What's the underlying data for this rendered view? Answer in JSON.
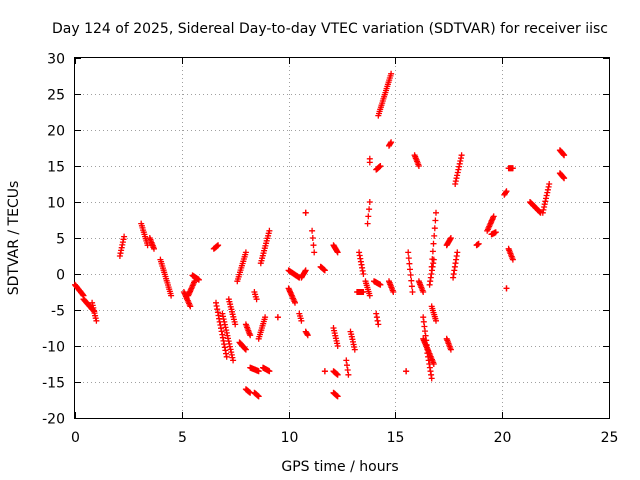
{
  "chart_data": {
    "type": "scatter",
    "title": "Day 124 of 2025, Sidereal Day-to-day VTEC variation (SDTVAR) for receiver iisc",
    "xlabel": "GPS time / hours",
    "ylabel": "SDTVAR / TECUs",
    "xlim": [
      0,
      25
    ],
    "ylim": [
      -20,
      30
    ],
    "xticks": [
      0,
      5,
      10,
      15,
      20,
      25
    ],
    "yticks": [
      -20,
      -15,
      -10,
      -5,
      0,
      5,
      10,
      15,
      20,
      25,
      30
    ],
    "grid": true,
    "marker": "+",
    "color": "#ff0000",
    "segments": [
      [
        0.0,
        -1.5,
        0.4,
        -3.0
      ],
      [
        0.4,
        -3.5,
        0.9,
        -5.2
      ],
      [
        0.8,
        -4.0,
        1.0,
        -6.5
      ],
      [
        2.1,
        2.5,
        2.3,
        5.2
      ],
      [
        3.1,
        7.0,
        3.4,
        4.0
      ],
      [
        3.5,
        5.0,
        3.7,
        3.5
      ],
      [
        4.0,
        2.0,
        4.5,
        -3.0
      ],
      [
        5.1,
        -2.5,
        5.4,
        -4.5
      ],
      [
        5.3,
        -3.0,
        5.6,
        -1.0
      ],
      [
        5.5,
        -0.2,
        5.8,
        -0.8
      ],
      [
        6.5,
        3.5,
        6.7,
        4.0
      ],
      [
        6.6,
        -4.0,
        7.1,
        -11.5
      ],
      [
        6.9,
        -5.5,
        7.4,
        -12.0
      ],
      [
        7.2,
        -3.5,
        7.5,
        -7.0
      ],
      [
        7.6,
        -1.0,
        8.0,
        3.0
      ],
      [
        7.7,
        -9.5,
        8.0,
        -10.5
      ],
      [
        8.0,
        -7.0,
        8.2,
        -8.5
      ],
      [
        8.0,
        -16.0,
        8.2,
        -16.5
      ],
      [
        8.2,
        -13.0,
        8.6,
        -13.5
      ],
      [
        8.4,
        -2.5,
        8.5,
        -3.5
      ],
      [
        8.4,
        -16.5,
        8.6,
        -17.0
      ],
      [
        8.6,
        -9.0,
        8.9,
        -6.0
      ],
      [
        8.7,
        1.5,
        9.1,
        6.0
      ],
      [
        8.8,
        -13.0,
        9.1,
        -13.5
      ],
      [
        9.5,
        -6.0,
        9.5,
        -6.0
      ],
      [
        10.0,
        -2.0,
        10.3,
        -4.0
      ],
      [
        10.0,
        0.5,
        10.5,
        -0.5
      ],
      [
        10.5,
        -5.5,
        10.6,
        -6.5
      ],
      [
        10.6,
        -0.5,
        10.8,
        0.5
      ],
      [
        10.8,
        8.5,
        10.8,
        8.5
      ],
      [
        10.8,
        -8.0,
        10.9,
        -8.5
      ],
      [
        11.1,
        6.0,
        11.2,
        3.0
      ],
      [
        11.5,
        1.0,
        11.7,
        0.5
      ],
      [
        11.7,
        -13.5,
        11.7,
        -13.5
      ],
      [
        12.1,
        4.0,
        12.3,
        3.0
      ],
      [
        12.1,
        -7.5,
        12.3,
        -10.0
      ],
      [
        12.1,
        -13.5,
        12.3,
        -14.0
      ],
      [
        12.1,
        -16.5,
        12.3,
        -17.0
      ],
      [
        12.7,
        -12.0,
        12.8,
        -14.0
      ],
      [
        12.9,
        -8.0,
        13.1,
        -10.5
      ],
      [
        13.2,
        -2.5,
        13.5,
        -2.5
      ],
      [
        13.3,
        3.0,
        13.5,
        0.0
      ],
      [
        13.6,
        -1.0,
        13.8,
        -3.0
      ],
      [
        13.7,
        7.0,
        13.8,
        10.0
      ],
      [
        13.8,
        16.0,
        13.8,
        15.5
      ],
      [
        14.0,
        -1.0,
        14.3,
        -1.5
      ],
      [
        14.1,
        -5.5,
        14.2,
        -7.0
      ],
      [
        14.1,
        14.5,
        14.3,
        15.0
      ],
      [
        14.2,
        22.0,
        14.8,
        27.8
      ],
      [
        14.7,
        17.8,
        14.8,
        18.3
      ],
      [
        14.7,
        -1.0,
        14.9,
        -2.5
      ],
      [
        15.6,
        3.0,
        15.8,
        -2.5
      ],
      [
        15.5,
        -13.5,
        15.5,
        -13.5
      ],
      [
        15.9,
        16.5,
        16.1,
        15.0
      ],
      [
        16.1,
        -1.0,
        16.3,
        -2.5
      ],
      [
        16.3,
        -6.0,
        16.5,
        -10.5
      ],
      [
        16.3,
        -9.0,
        16.8,
        -12.5
      ],
      [
        16.5,
        -11.0,
        16.7,
        -14.5
      ],
      [
        16.7,
        1.0,
        16.9,
        8.5
      ],
      [
        16.6,
        -1.5,
        16.8,
        2.0
      ],
      [
        16.7,
        -4.5,
        16.9,
        -6.5
      ],
      [
        17.4,
        4.0,
        17.6,
        5.0
      ],
      [
        17.4,
        -9.0,
        17.6,
        -10.5
      ],
      [
        17.7,
        -0.5,
        17.9,
        3.0
      ],
      [
        17.8,
        12.5,
        18.1,
        16.5
      ],
      [
        18.8,
        4.0,
        18.9,
        4.2
      ],
      [
        19.3,
        6.0,
        19.6,
        8.0
      ],
      [
        19.5,
        5.5,
        19.7,
        5.8
      ],
      [
        20.1,
        11.0,
        20.2,
        11.5
      ],
      [
        20.2,
        -2.0,
        20.2,
        -2.0
      ],
      [
        20.3,
        14.7,
        20.5,
        14.7
      ],
      [
        20.3,
        3.5,
        20.5,
        2.0
      ],
      [
        21.3,
        10.0,
        21.8,
        8.5
      ],
      [
        21.9,
        8.5,
        22.2,
        12.5
      ],
      [
        22.7,
        17.2,
        22.9,
        16.5
      ],
      [
        22.7,
        14.0,
        22.9,
        13.3
      ]
    ]
  }
}
